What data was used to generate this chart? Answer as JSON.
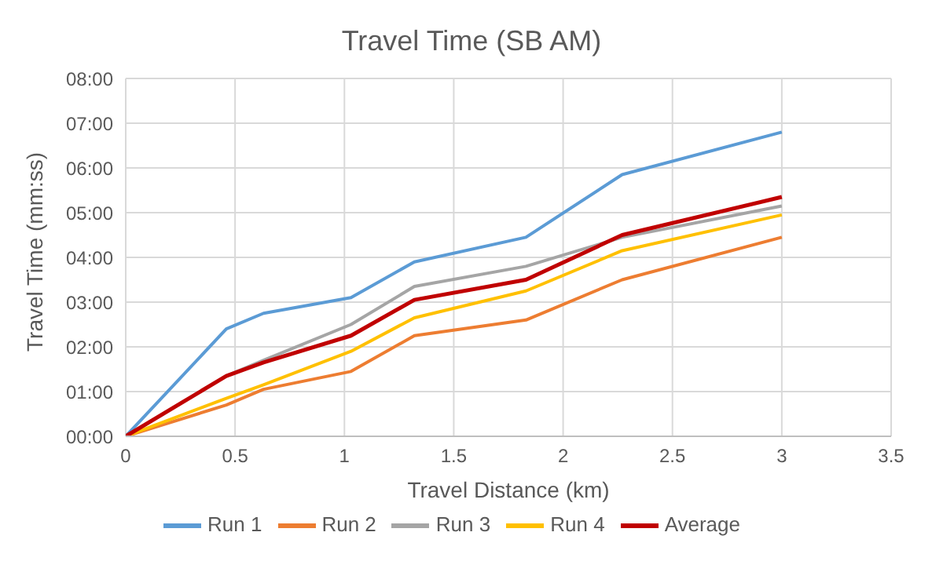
{
  "chart_data": {
    "type": "line",
    "title": "Travel Time (SB AM)",
    "xlabel": "Travel Distance (km)",
    "ylabel": "Travel Time (mm:ss)",
    "x": [
      0,
      0.46,
      0.63,
      1.03,
      1.32,
      1.83,
      2.27,
      3.0
    ],
    "series": [
      {
        "name": "Run 1",
        "color": "#5b9bd5",
        "values": [
          0,
          2.4,
          2.75,
          3.1,
          3.9,
          4.45,
          5.85,
          6.8
        ]
      },
      {
        "name": "Run 2",
        "color": "#ed7d31",
        "values": [
          0,
          0.7,
          1.05,
          1.45,
          2.25,
          2.6,
          3.5,
          4.45
        ]
      },
      {
        "name": "Run 3",
        "color": "#a5a5a5",
        "values": [
          0,
          1.35,
          1.7,
          2.5,
          3.35,
          3.8,
          4.45,
          5.15
        ]
      },
      {
        "name": "Run 4",
        "color": "#ffc000",
        "values": [
          0,
          0.85,
          1.15,
          1.9,
          2.65,
          3.25,
          4.15,
          4.95
        ]
      },
      {
        "name": "Average",
        "color": "#c00000",
        "values": [
          0,
          1.35,
          1.65,
          2.25,
          3.05,
          3.5,
          4.5,
          5.35
        ]
      }
    ],
    "xlim": [
      0,
      3.5
    ],
    "xticks": [
      0,
      0.5,
      1,
      1.5,
      2,
      2.5,
      3,
      3.5
    ],
    "ylim": [
      0,
      8
    ],
    "yticks": [
      {
        "value": 0,
        "label": "00:00"
      },
      {
        "value": 1,
        "label": "01:00"
      },
      {
        "value": 2,
        "label": "02:00"
      },
      {
        "value": 3,
        "label": "03:00"
      },
      {
        "value": 4,
        "label": "04:00"
      },
      {
        "value": 5,
        "label": "05:00"
      },
      {
        "value": 6,
        "label": "06:00"
      },
      {
        "value": 7,
        "label": "07:00"
      },
      {
        "value": 8,
        "label": "08:00"
      }
    ],
    "grid": true,
    "legend": "bottom",
    "marker": "none",
    "line_style": "solid"
  }
}
